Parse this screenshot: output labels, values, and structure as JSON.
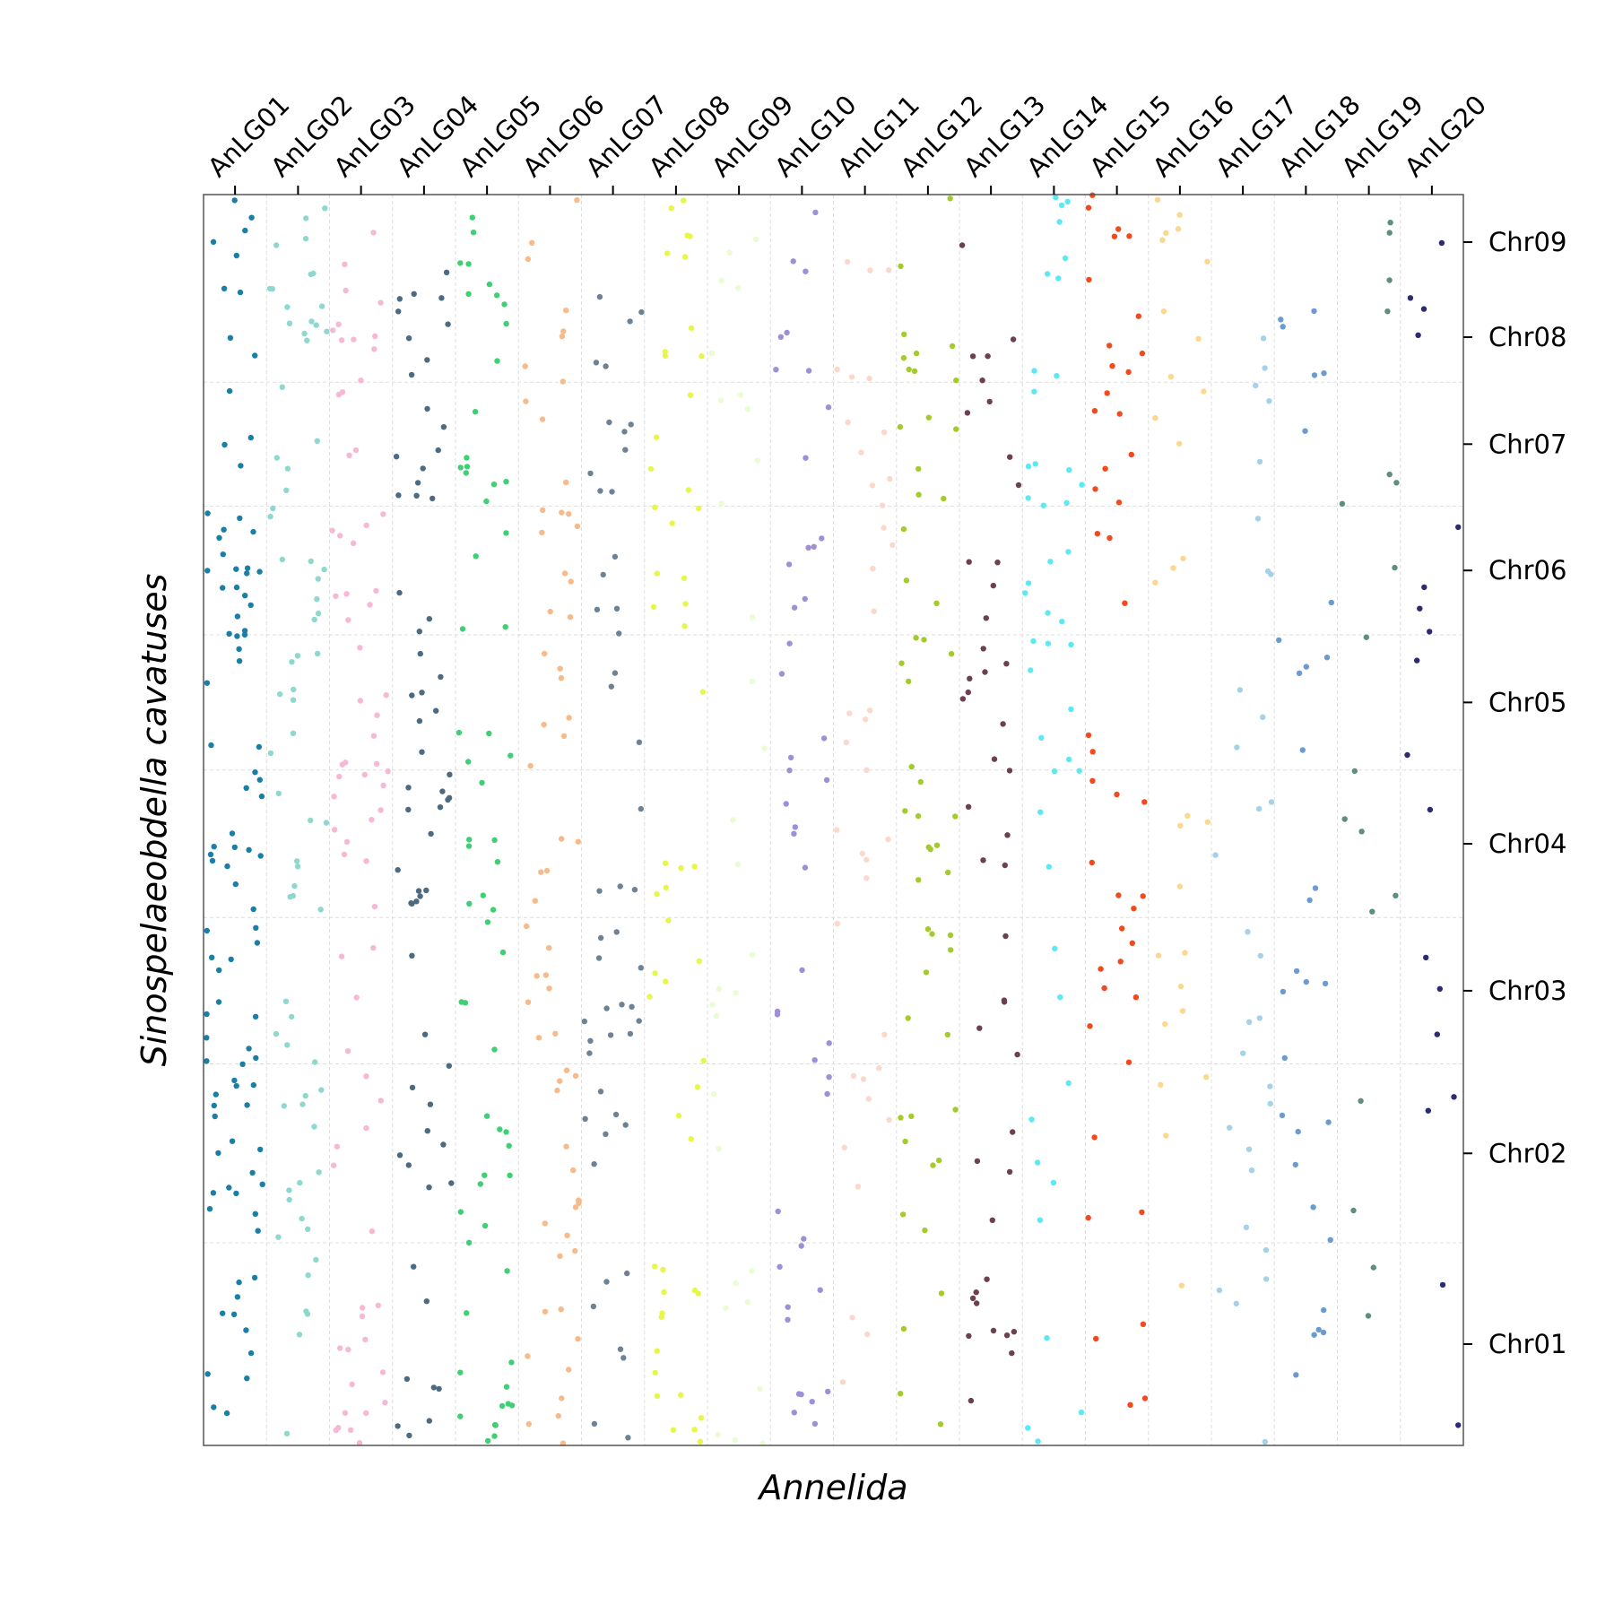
{
  "chart_data": {
    "type": "scatter",
    "title": "",
    "xlabel": "Annelida",
    "ylabel": "Sinospelaeobdella cavatuses",
    "x_groups": [
      "AnLG01",
      "AnLG02",
      "AnLG03",
      "AnLG04",
      "AnLG05",
      "AnLG06",
      "AnLG07",
      "AnLG08",
      "AnLG09",
      "AnLG10",
      "AnLG11",
      "AnLG12",
      "AnLG13",
      "AnLG14",
      "AnLG15",
      "AnLG16",
      "AnLG17",
      "AnLG18",
      "AnLG19",
      "AnLG20"
    ],
    "y_groups": [
      {
        "name": "Chr01",
        "start": 0.0,
        "end": 0.162
      },
      {
        "name": "Chr02",
        "start": 0.162,
        "end": 0.305
      },
      {
        "name": "Chr03",
        "start": 0.305,
        "end": 0.422
      },
      {
        "name": "Chr04",
        "start": 0.422,
        "end": 0.54
      },
      {
        "name": "Chr05",
        "start": 0.54,
        "end": 0.648
      },
      {
        "name": "Chr06",
        "start": 0.648,
        "end": 0.751
      },
      {
        "name": "Chr07",
        "start": 0.751,
        "end": 0.85
      },
      {
        "name": "Chr08",
        "start": 0.85,
        "end": 0.922
      },
      {
        "name": "Chr09",
        "start": 1.0,
        "end": 1.0
      }
    ],
    "group_colors": [
      "#1a7fa6",
      "#8fd8cf",
      "#f6b8d4",
      "#4d6a80",
      "#3fcf74",
      "#f7ba8a",
      "#6d8294",
      "#e6f74a",
      "#eafcd2",
      "#9f8fd6",
      "#fbd8cc",
      "#a3cc2b",
      "#6d3f52",
      "#5ce9f4",
      "#f14a1d",
      "#fbd88f",
      "#a5d2e8",
      "#6c9bd0",
      "#5f8e7f",
      "#2c2a70"
    ],
    "point_counts": [
      95,
      70,
      70,
      62,
      62,
      62,
      50,
      52,
      30,
      45,
      38,
      52,
      45,
      45,
      45,
      28,
      30,
      30,
      18,
      18
    ],
    "dense_regions": [
      {
        "group": "AnLG01",
        "chromosomes": [
          "Chr02",
          "Chr03",
          "Chr04",
          "Chr06",
          "Chr07",
          "Chr08",
          "Chr09"
        ]
      },
      {
        "group": "AnLG04",
        "chromosomes": [
          "Chr04",
          "Chr07",
          "Chr08"
        ]
      },
      {
        "group": "AnLG15",
        "chromosomes": [
          "Chr03",
          "Chr04",
          "Chr08",
          "Chr09"
        ]
      }
    ],
    "grid": true,
    "tick_positions": {
      "x": "top",
      "y": "right"
    }
  }
}
